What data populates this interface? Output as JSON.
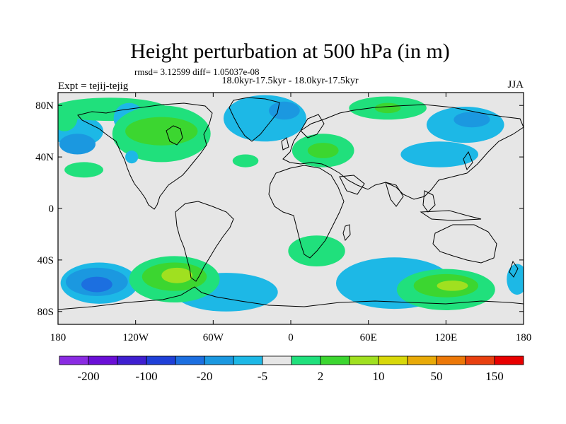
{
  "title": "Height perturbation at 500 hPa (in m)",
  "stats_line": "rmsd= 3.12599 diff= 1.05037e-08",
  "period_line": "18.0kyr-17.5kyr - 18.0kyr-17.5kyr",
  "expt_label": "Expt = tejij-tejig",
  "season": "JJA",
  "map": {
    "projection": "cylindrical-equidistant",
    "lon_range": [
      -180,
      180
    ],
    "lat_range": [
      -90,
      90
    ],
    "background_color": "#e6e6e6",
    "x_ticks": [
      {
        "lon": -180,
        "label": "180"
      },
      {
        "lon": -120,
        "label": "120W"
      },
      {
        "lon": -60,
        "label": "60W"
      },
      {
        "lon": 0,
        "label": "0"
      },
      {
        "lon": 60,
        "label": "60E"
      },
      {
        "lon": 120,
        "label": "120E"
      },
      {
        "lon": 180,
        "label": "180"
      }
    ],
    "y_ticks": [
      {
        "lat": 80,
        "label": "80N"
      },
      {
        "lat": 40,
        "label": "40N"
      },
      {
        "lat": 0,
        "label": "0"
      },
      {
        "lat": -40,
        "label": "40S"
      },
      {
        "lat": -80,
        "label": "80S"
      }
    ]
  },
  "colorbar": {
    "colors": [
      "#8a2be2",
      "#6a0fd6",
      "#3f1fd0",
      "#1f40d8",
      "#1c6fe0",
      "#1b98e0",
      "#1db8e6",
      "#e6e6e6",
      "#20e07c",
      "#3cd630",
      "#a0e020",
      "#d8d80a",
      "#e8aa08",
      "#ec7808",
      "#e84010",
      "#e80000"
    ],
    "labels": [
      {
        "index": 1,
        "text": "-200"
      },
      {
        "index": 3,
        "text": "-100"
      },
      {
        "index": 5,
        "text": "-20"
      },
      {
        "index": 7,
        "text": "-5"
      },
      {
        "index": 9,
        "text": "2"
      },
      {
        "index": 11,
        "text": "10"
      },
      {
        "index": 13,
        "text": "50"
      },
      {
        "index": 15,
        "text": "150"
      }
    ]
  },
  "anomaly_regions": [
    {
      "name": "n-pacific-cyan",
      "color": "#1db8e6",
      "lon": -165,
      "lat": 60,
      "rlon": 20,
      "rlat": 12
    },
    {
      "name": "n-pacific-green-far-west",
      "color": "#20e07c",
      "lon": -175,
      "lat": 70,
      "rlon": 10,
      "rlat": 10
    },
    {
      "name": "n-pacific-green",
      "color": "#20e07c",
      "lon": -140,
      "lat": 77,
      "rlon": 45,
      "rlat": 9
    },
    {
      "name": "n-pacific-blue",
      "color": "#1b98e0",
      "lon": -165,
      "lat": 50,
      "rlon": 14,
      "rlat": 8
    },
    {
      "name": "n-pacific-cyan-2",
      "color": "#1db8e6",
      "lon": -125,
      "lat": 70,
      "rlon": 12,
      "rlat": 12
    },
    {
      "name": "n-america-green",
      "color": "#20e07c",
      "lon": -100,
      "lat": 58,
      "rlon": 38,
      "rlat": 22
    },
    {
      "name": "n-america-darkgreen",
      "color": "#3cd630",
      "lon": -100,
      "lat": 60,
      "rlon": 28,
      "rlat": 11
    },
    {
      "name": "pacific-lower-green",
      "color": "#20e07c",
      "lon": -160,
      "lat": 30,
      "rlon": 15,
      "rlat": 6
    },
    {
      "name": "w-america-cyan",
      "color": "#1db8e6",
      "lon": -123,
      "lat": 40,
      "rlon": 5,
      "rlat": 5
    },
    {
      "name": "n-atlantic-cyan",
      "color": "#1db8e6",
      "lon": -20,
      "lat": 70,
      "rlon": 32,
      "rlat": 18
    },
    {
      "name": "n-atlantic-blue",
      "color": "#1b98e0",
      "lon": -5,
      "lat": 76,
      "rlon": 12,
      "rlat": 7
    },
    {
      "name": "mid-atlantic-green",
      "color": "#20e07c",
      "lon": -35,
      "lat": 37,
      "rlon": 10,
      "rlat": 5
    },
    {
      "name": "europe-green",
      "color": "#20e07c",
      "lon": 25,
      "lat": 45,
      "rlon": 24,
      "rlat": 13
    },
    {
      "name": "europe-darkgreen",
      "color": "#3cd630",
      "lon": 25,
      "lat": 45,
      "rlon": 12,
      "rlat": 6
    },
    {
      "name": "siberia-green",
      "color": "#20e07c",
      "lon": 75,
      "lat": 78,
      "rlon": 30,
      "rlat": 9
    },
    {
      "name": "siberia-darkgreen",
      "color": "#3cd630",
      "lon": 75,
      "lat": 78,
      "rlon": 10,
      "rlat": 4
    },
    {
      "name": "n-asia-cyan",
      "color": "#1db8e6",
      "lon": 135,
      "lat": 65,
      "rlon": 30,
      "rlat": 14
    },
    {
      "name": "n-asia-blue",
      "color": "#1b98e0",
      "lon": 140,
      "lat": 69,
      "rlon": 14,
      "rlat": 6
    },
    {
      "name": "asia-cyan",
      "color": "#1db8e6",
      "lon": 115,
      "lat": 42,
      "rlon": 30,
      "rlat": 10
    },
    {
      "name": "s-atlantic-green",
      "color": "#20e07c",
      "lon": 20,
      "lat": -33,
      "rlon": 22,
      "rlat": 12
    },
    {
      "name": "s-indian-cyan",
      "color": "#1db8e6",
      "lon": 80,
      "lat": -58,
      "rlon": 45,
      "rlat": 20
    },
    {
      "name": "s-indian-green",
      "color": "#20e07c",
      "lon": 120,
      "lat": -63,
      "rlon": 38,
      "rlat": 16
    },
    {
      "name": "s-indian-darkgreen",
      "color": "#3cd630",
      "lon": 120,
      "lat": -60,
      "rlon": 25,
      "rlat": 9
    },
    {
      "name": "s-indian-yellowgreen",
      "color": "#a0e020",
      "lon": 125,
      "lat": -60,
      "rlon": 12,
      "rlat": 4
    },
    {
      "name": "s-pacific-cyan",
      "color": "#1db8e6",
      "lon": -148,
      "lat": -58,
      "rlon": 30,
      "rlat": 16
    },
    {
      "name": "s-pacific-blue",
      "color": "#1b98e0",
      "lon": -150,
      "lat": -57,
      "rlon": 24,
      "rlat": 11
    },
    {
      "name": "s-pacific-deepblue",
      "color": "#1c6fe0",
      "lon": -150,
      "lat": -59,
      "rlon": 12,
      "rlat": 6
    },
    {
      "name": "s-america-cyan",
      "color": "#1db8e6",
      "lon": -50,
      "lat": -65,
      "rlon": 40,
      "rlat": 15
    },
    {
      "name": "s-pacific-green",
      "color": "#20e07c",
      "lon": -90,
      "lat": -55,
      "rlon": 35,
      "rlat": 18
    },
    {
      "name": "s-pacific-darkgreen",
      "color": "#3cd630",
      "lon": -90,
      "lat": -53,
      "rlon": 25,
      "rlat": 11
    },
    {
      "name": "s-pacific-yellowgreen",
      "color": "#a0e020",
      "lon": -88,
      "lat": -52,
      "rlon": 12,
      "rlat": 6
    },
    {
      "name": "far-east-cyan",
      "color": "#1db8e6",
      "lon": 175,
      "lat": -55,
      "rlon": 8,
      "rlat": 12
    }
  ]
}
